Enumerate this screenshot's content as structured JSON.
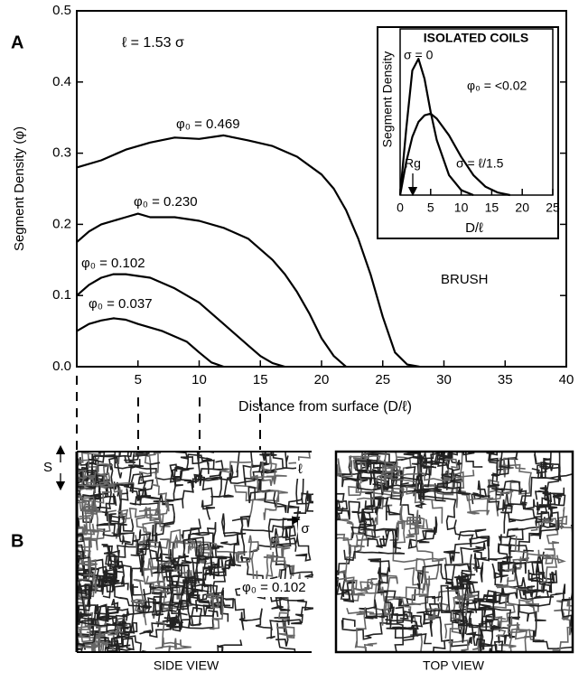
{
  "chart_data": [
    {
      "type": "line",
      "xlabel": "Distance from surface (D/ℓ)",
      "ylabel": "Segment Density (φ)",
      "annotations": [
        "ℓ = 1.53 σ",
        "BRUSH"
      ],
      "xlim": [
        0,
        40
      ],
      "ylim": [
        0,
        0.5
      ],
      "xticks": [
        5,
        10,
        15,
        20,
        25,
        30,
        35,
        40
      ],
      "yticks": [
        {
          "value": 0,
          "label": "0.0"
        },
        0.1,
        0.2,
        0.3,
        0.4,
        0.5
      ],
      "series": [
        {
          "name": "φ₀ = 0.469",
          "color": "#000000",
          "x": [
            0,
            2,
            4,
            6,
            8,
            10,
            12,
            14,
            16,
            18,
            20,
            21,
            22,
            23,
            24,
            25,
            26,
            27,
            28
          ],
          "values": [
            0.28,
            0.29,
            0.305,
            0.315,
            0.322,
            0.32,
            0.325,
            0.318,
            0.31,
            0.295,
            0.27,
            0.25,
            0.22,
            0.18,
            0.13,
            0.07,
            0.02,
            0.003,
            0
          ]
        },
        {
          "name": "φ₀ = 0.230",
          "color": "#000000",
          "x": [
            0,
            1,
            2,
            4,
            5,
            6,
            8,
            10,
            12,
            14,
            16,
            17,
            18,
            19,
            20,
            21,
            22
          ],
          "values": [
            0.175,
            0.19,
            0.2,
            0.21,
            0.215,
            0.21,
            0.21,
            0.205,
            0.195,
            0.18,
            0.15,
            0.13,
            0.105,
            0.075,
            0.04,
            0.015,
            0
          ]
        },
        {
          "name": "φ₀ = 0.102",
          "color": "#000000",
          "x": [
            0,
            1,
            2,
            3,
            4,
            6,
            8,
            10,
            12,
            14,
            15,
            16,
            17
          ],
          "values": [
            0.1,
            0.115,
            0.125,
            0.13,
            0.13,
            0.125,
            0.11,
            0.09,
            0.06,
            0.03,
            0.015,
            0.005,
            0
          ]
        },
        {
          "name": "φ₀ = 0.037",
          "color": "#000000",
          "x": [
            0,
            1,
            2,
            3,
            4,
            5,
            7,
            9,
            10,
            11,
            12
          ],
          "values": [
            0.05,
            0.06,
            0.065,
            0.068,
            0.066,
            0.06,
            0.05,
            0.035,
            0.02,
            0.006,
            0
          ]
        }
      ]
    },
    {
      "type": "line",
      "title": "ISOLATED COILS",
      "xlabel": "D/ℓ",
      "ylabel": "Segment Density",
      "annotations": [
        "φ₀ = <0.02",
        "Rg"
      ],
      "xlim": [
        0,
        25
      ],
      "ylim": [
        0,
        1
      ],
      "xticks": [
        0,
        5,
        10,
        15,
        20,
        25
      ],
      "series": [
        {
          "name": "σ = 0",
          "color": "#000000",
          "x": [
            0,
            1,
            2,
            3,
            4,
            5,
            6,
            8,
            10,
            12
          ],
          "values": [
            0,
            0.4,
            0.75,
            0.82,
            0.7,
            0.5,
            0.33,
            0.12,
            0.03,
            0
          ]
        },
        {
          "name": "σ = ℓ/1.5",
          "color": "#000000",
          "x": [
            0,
            1,
            2,
            3,
            4,
            5,
            6,
            8,
            10,
            12,
            14,
            16,
            18
          ],
          "values": [
            0,
            0.2,
            0.35,
            0.44,
            0.48,
            0.49,
            0.46,
            0.36,
            0.23,
            0.12,
            0.05,
            0.015,
            0
          ]
        }
      ]
    }
  ],
  "panel_labels": [
    "A",
    "B"
  ],
  "simulation": {
    "views": [
      "SIDE VIEW",
      "TOP VIEW"
    ],
    "labels": [
      "S",
      "ℓ",
      "σ",
      "φ₀ = 0.102"
    ]
  }
}
